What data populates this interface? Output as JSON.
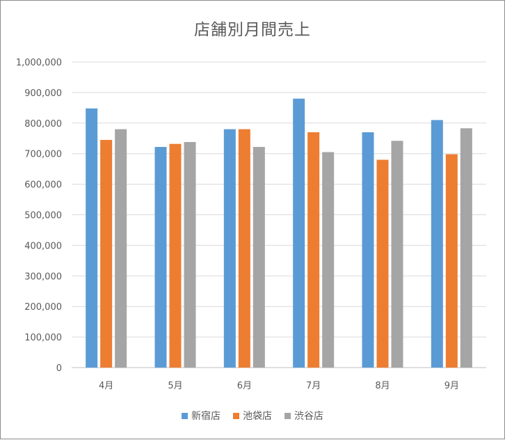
{
  "chart_data": {
    "type": "bar",
    "title": "店舗別月間売上",
    "xlabel": "",
    "ylabel": "",
    "categories": [
      "4月",
      "5月",
      "6月",
      "7月",
      "8月",
      "9月"
    ],
    "series": [
      {
        "name": "新宿店",
        "color": "#5b9bd5",
        "values": [
          848000,
          722000,
          780000,
          880000,
          770000,
          810000
        ]
      },
      {
        "name": "池袋店",
        "color": "#ed7d31",
        "values": [
          745000,
          732000,
          780000,
          770000,
          680000,
          698000
        ]
      },
      {
        "name": "渋谷店",
        "color": "#a5a5a5",
        "values": [
          780000,
          738000,
          722000,
          705000,
          742000,
          783000
        ]
      }
    ],
    "ylim": [
      0,
      1000000
    ],
    "yticks": [
      0,
      100000,
      200000,
      300000,
      400000,
      500000,
      600000,
      700000,
      800000,
      900000,
      1000000
    ],
    "ytick_labels": [
      "0",
      "100,000",
      "200,000",
      "300,000",
      "400,000",
      "500,000",
      "600,000",
      "700,000",
      "800,000",
      "900,000",
      "1,000,000"
    ],
    "grid": true,
    "legend_position": "bottom"
  }
}
